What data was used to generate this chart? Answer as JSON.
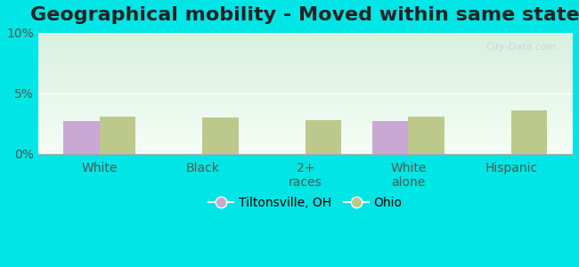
{
  "title": "Geographical mobility - Moved within same state",
  "categories": [
    "White",
    "Black",
    "2+\nraces",
    "White\nalone",
    "Hispanic"
  ],
  "tiltonsville_values": [
    2.7,
    0.0,
    0.0,
    2.7,
    0.0
  ],
  "ohio_values": [
    3.1,
    3.0,
    2.8,
    3.1,
    3.6
  ],
  "tiltonsville_color": "#c9a8d4",
  "ohio_color": "#bdc98a",
  "ylim": [
    0,
    10
  ],
  "yticks": [
    0,
    5,
    10
  ],
  "ytick_labels": [
    "0%",
    "5%",
    "10%"
  ],
  "legend_tiltonsville": "Tiltonsville, OH",
  "legend_ohio": "Ohio",
  "bg_outer": "#00e5e5",
  "bar_width": 0.35,
  "title_fontsize": 16,
  "tick_fontsize": 10,
  "legend_fontsize": 10,
  "watermark": "City-Data.com"
}
